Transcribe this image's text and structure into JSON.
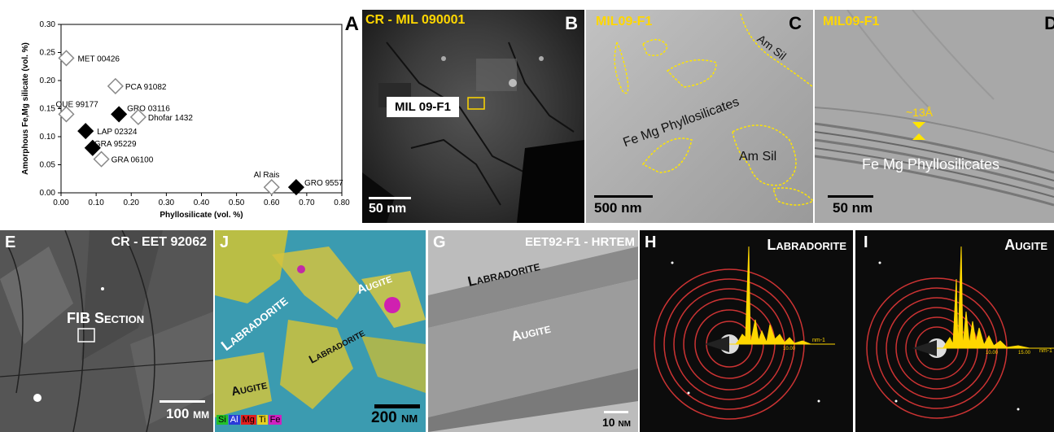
{
  "panel_letters": {
    "A": "A",
    "B": "B",
    "C": "C",
    "D": "D",
    "E": "E",
    "J": "J",
    "G": "G",
    "H": "H",
    "I": "I"
  },
  "chart_data": {
    "type": "scatter",
    "title": "",
    "xlabel": "Phyllosilicate (vol. %)",
    "ylabel": "Amorphous Fe,Mg silicate (vol. %)",
    "xlim": [
      0,
      0.8
    ],
    "ylim": [
      0,
      0.3
    ],
    "xticks": [
      "0.00",
      "0.10",
      "0.20",
      "0.30",
      "0.40",
      "0.50",
      "0.60",
      "0.70",
      "0.80"
    ],
    "yticks": [
      "0.00",
      "0.05",
      "0.10",
      "0.15",
      "0.20",
      "0.25",
      "0.30"
    ],
    "points": [
      {
        "label": "MET 00426",
        "x": 0.015,
        "y": 0.24,
        "filled": false
      },
      {
        "label": "PCA 91082",
        "x": 0.155,
        "y": 0.19,
        "filled": false
      },
      {
        "label": "QUE 99177",
        "x": 0.015,
        "y": 0.14,
        "filled": false
      },
      {
        "label": "GRO 03116",
        "x": 0.165,
        "y": 0.14,
        "filled": true
      },
      {
        "label": "Dhofar 1432",
        "x": 0.22,
        "y": 0.135,
        "filled": false
      },
      {
        "label": "LAP 02324",
        "x": 0.07,
        "y": 0.11,
        "filled": true
      },
      {
        "label": "GRA 95229",
        "x": 0.09,
        "y": 0.08,
        "filled": true
      },
      {
        "label": "GRA 06100",
        "x": 0.115,
        "y": 0.06,
        "filled": false
      },
      {
        "label": "Al Rais",
        "x": 0.6,
        "y": 0.01,
        "filled": false
      },
      {
        "label": "GRO 9557",
        "x": 0.67,
        "y": 0.01,
        "filled": true
      }
    ]
  },
  "panelB": {
    "title": "CR - MIL 090001",
    "box_label": "MIL 09-F1",
    "scale": "50 nm"
  },
  "panelC": {
    "title": "MIL09-F1",
    "region1": "Am Sil",
    "region2": "Fe Mg Phyllosilicates",
    "region3": "Am Sil",
    "scale": "500 nm"
  },
  "panelD": {
    "title": "MIL09-F1",
    "spacing": "~13Å",
    "phase": "Fe Mg Phyllosilicates",
    "scale": "50 nm"
  },
  "panelE": {
    "title": "CR - EET 92062",
    "box_label": "FIB Section",
    "scale": "100 µm"
  },
  "panelJ": {
    "labels": [
      "Labradorite",
      "Augite",
      "Labradorite",
      "Augite"
    ],
    "legend": [
      "Si",
      "Al",
      "Mg",
      "Ti",
      "Fe"
    ],
    "scale": "200 nm"
  },
  "panelG": {
    "title": "EET92-F1 - HRTEM",
    "phase1": "Labradorite",
    "phase2": "Augite",
    "scale": "10 nm"
  },
  "panelH": {
    "title": "Labradorite",
    "axis_unit": "nm-1",
    "tick": "10.00"
  },
  "panelI": {
    "title": "Augite",
    "axis_unit": "nm-1",
    "tick1": "10.00",
    "tick2": "15.00"
  }
}
